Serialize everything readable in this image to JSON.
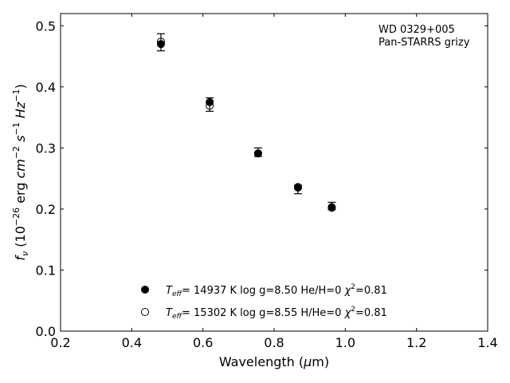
{
  "chart_data": {
    "type": "scatter",
    "annotations": [
      "WD 0329+005",
      "Pan-STARRS grizy"
    ],
    "xlabel": "Wavelength (μm)",
    "ylabel": "f_ν (10^-26 erg cm^-2 s^-1 Hz^-1)",
    "xlim": [
      0.2,
      1.4
    ],
    "ylim": [
      0.0,
      0.52
    ],
    "xticks": [
      0.2,
      0.4,
      0.6,
      0.8,
      1.0,
      1.2,
      1.4
    ],
    "xtick_labels": [
      "0.2",
      "0.4",
      "0.6",
      "0.8",
      "1.0",
      "1.2",
      "1.4"
    ],
    "yticks": [
      0.0,
      0.1,
      0.2,
      0.3,
      0.4,
      0.5
    ],
    "ytick_labels": [
      "0.0",
      "0.1",
      "0.2",
      "0.3",
      "0.4",
      "0.5"
    ],
    "grid": false,
    "legend_position": "lower-center",
    "observed": {
      "x": [
        0.482,
        0.619,
        0.755,
        0.867,
        0.962
      ],
      "y": [
        0.473,
        0.371,
        0.293,
        0.232,
        0.205
      ],
      "yerr": [
        0.014,
        0.011,
        0.007,
        0.007,
        0.006
      ]
    },
    "series": [
      {
        "name": "T_eff= 14937 K  log g=8.50  He/H=0  χ²=0.81",
        "marker": "filled-circle",
        "x": [
          0.482,
          0.619,
          0.755,
          0.867,
          0.962
        ],
        "y": [
          0.47,
          0.375,
          0.291,
          0.236,
          0.203
        ]
      },
      {
        "name": "T_eff= 15302 K  log g=8.55  H/He=0  χ²=0.81",
        "marker": "open-circle",
        "x": [
          0.482,
          0.619,
          0.755,
          0.867,
          0.962
        ],
        "y": [
          0.474,
          0.369,
          0.291,
          0.235,
          0.202
        ]
      }
    ]
  },
  "legend": {
    "entry1": {
      "teff_value": "= 14937 K  log g=8.50  He/H=0  ",
      "chi_value": "=0.81"
    },
    "entry2": {
      "teff_value": "= 15302 K  log g=8.55  H/He=0  ",
      "chi_value": "=0.81"
    }
  },
  "colors": {
    "marker": "#000000",
    "background": "#ffffff"
  }
}
